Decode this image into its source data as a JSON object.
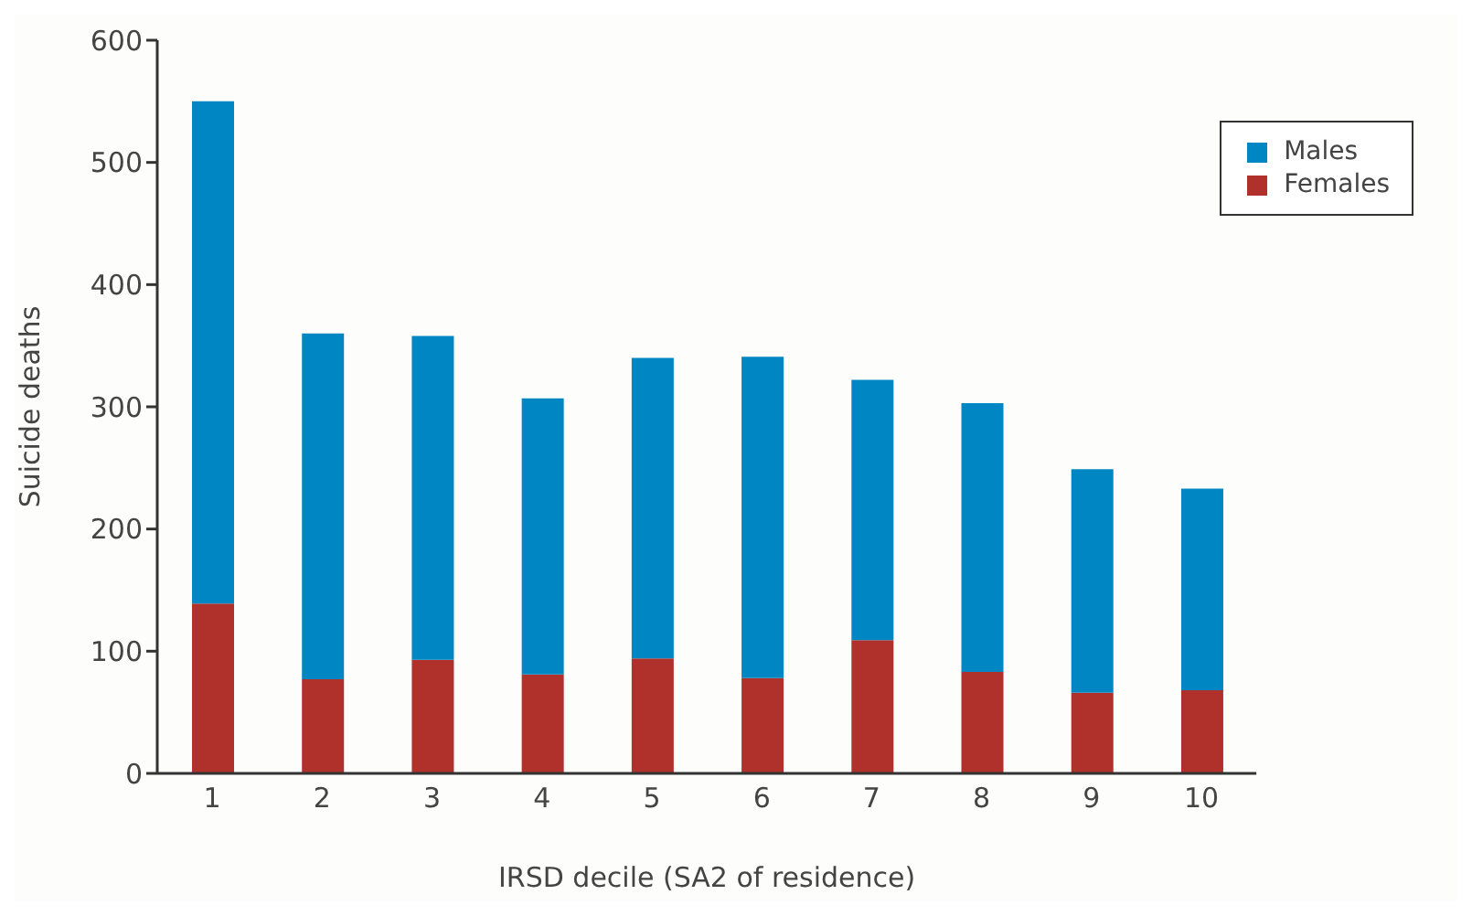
{
  "chart_data": {
    "type": "bar",
    "stacked": true,
    "xlabel": "IRSD decile (SA2 of residence)",
    "ylabel": "Suicide deaths",
    "categories": [
      "1",
      "2",
      "3",
      "4",
      "5",
      "6",
      "7",
      "8",
      "9",
      "10"
    ],
    "series": [
      {
        "name": "Females",
        "color": "#b0302b",
        "values": [
          139,
          77,
          93,
          81,
          94,
          78,
          109,
          83,
          66,
          68
        ]
      },
      {
        "name": "Males",
        "color": "#0086c3",
        "values": [
          411,
          283,
          265,
          226,
          246,
          263,
          213,
          220,
          183,
          165
        ]
      }
    ],
    "ylim": [
      0,
      600
    ],
    "yticks": [
      0,
      100,
      200,
      300,
      400,
      500,
      600
    ],
    "grid": false,
    "legend": "top right"
  }
}
